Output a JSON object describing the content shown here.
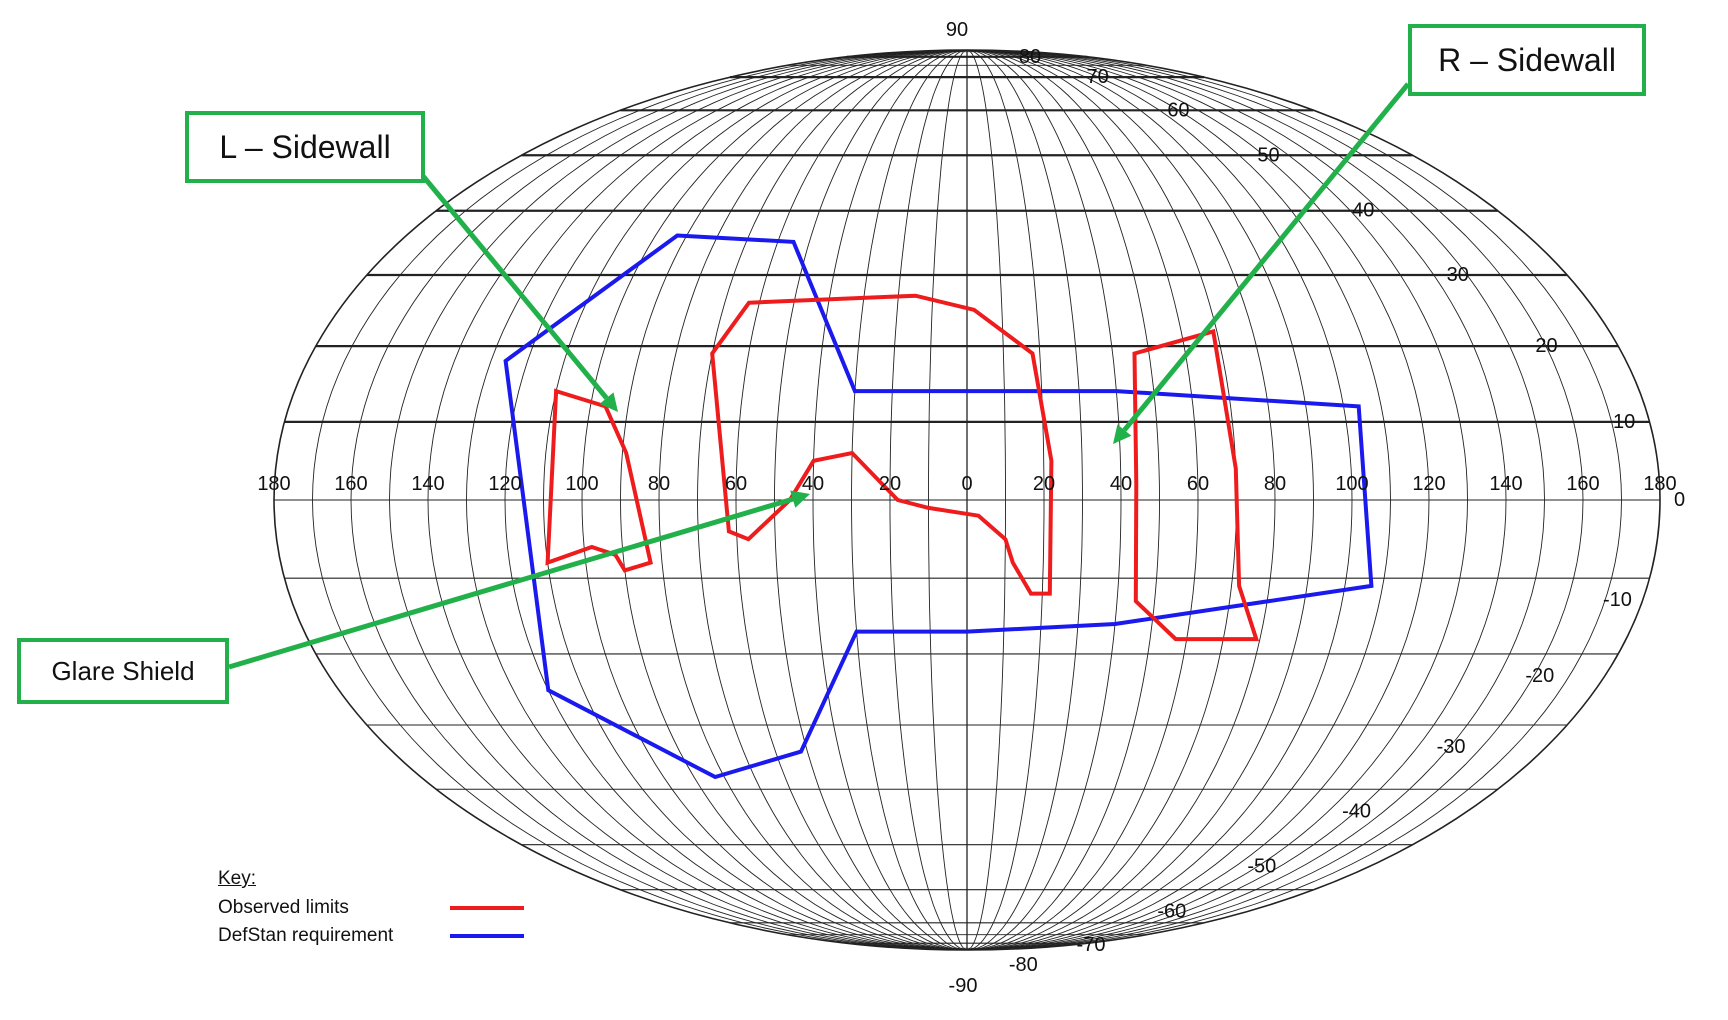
{
  "colors": {
    "observed": "#ee1c1c",
    "requirement": "#1a1aee",
    "callout": "#22b04b",
    "grid": "#222222"
  },
  "callouts": {
    "l_sidewall": "L – Sidewall",
    "r_sidewall": "R – Sidewall",
    "glare_shield": "Glare Shield"
  },
  "key": {
    "title": "Key:",
    "observed_label": "Observed limits",
    "requirement_label": "DefStan requirement"
  },
  "chart_data": {
    "type": "line",
    "projection": "equal-area ellipse (azimuth x elevation)",
    "x_tick_labels": [
      "180",
      "160",
      "140",
      "120",
      "100",
      "80",
      "60",
      "40",
      "20",
      "0",
      "20",
      "40",
      "60",
      "80",
      "100",
      "120",
      "140",
      "160",
      "180"
    ],
    "x_tick_values": [
      -180,
      -160,
      -140,
      -120,
      -100,
      -80,
      -60,
      -40,
      -20,
      0,
      20,
      40,
      60,
      80,
      100,
      120,
      140,
      160,
      180
    ],
    "y_tick_labels_top": [
      "90",
      "80",
      "70",
      "60",
      "50",
      "40",
      "30",
      "20",
      "10",
      "0"
    ],
    "y_tick_values_top": [
      90,
      80,
      70,
      60,
      50,
      40,
      30,
      20,
      10,
      0
    ],
    "y_tick_labels_bottom": [
      "-10",
      "-20",
      "-30",
      "-40",
      "-50",
      "-60",
      "-70",
      "-80",
      "-90"
    ],
    "y_tick_values_bottom": [
      -10,
      -20,
      -30,
      -40,
      -50,
      -60,
      -70,
      -80,
      -90
    ],
    "xlim": [
      -180,
      180
    ],
    "ylim": [
      -90,
      90
    ],
    "series": [
      {
        "name": "DefStan requirement",
        "color": "#1a1aee",
        "polygons": [
          [
            [
              -93,
              36
            ],
            [
              -55,
              35
            ],
            [
              -30,
              14
            ],
            [
              20,
              14
            ],
            [
              40,
              14
            ],
            [
              104,
              12
            ],
            [
              107,
              -11
            ],
            [
              40,
              -16
            ],
            [
              0,
              -17
            ],
            [
              -30,
              -17
            ],
            [
              -52,
              -34
            ],
            [
              -83,
              -38
            ],
            [
              -120,
              -25
            ],
            [
              -126,
              18
            ]
          ]
        ]
      },
      {
        "name": "Observed limits",
        "color": "#ee1c1c",
        "polygons": [
          [
            [
              -110,
              14
            ],
            [
              -96,
              12
            ],
            [
              -89,
              6
            ],
            [
              -83,
              -8
            ],
            [
              -90,
              -9
            ],
            [
              -92,
              -7
            ],
            [
              -98,
              -6
            ],
            [
              -110,
              -8
            ]
          ],
          [
            [
              -63,
              26
            ],
            [
              -15,
              27
            ],
            [
              2,
              25
            ],
            [
              18,
              19
            ],
            [
              22,
              5
            ],
            [
              22,
              -12
            ],
            [
              17,
              -12
            ],
            [
              12,
              -8
            ],
            [
              10,
              -5
            ],
            [
              3,
              -2
            ],
            [
              -10,
              -1
            ],
            [
              -18,
              0
            ],
            [
              -30,
              6
            ],
            [
              -40,
              5
            ],
            [
              -46,
              0
            ],
            [
              -57,
              -5
            ],
            [
              -62,
              -4
            ],
            [
              -70,
              19
            ]
          ],
          [
            [
              46,
              19
            ],
            [
              69,
              22
            ],
            [
              70,
              4
            ],
            [
              72,
              -11
            ],
            [
              79,
              -18
            ],
            [
              57,
              -18
            ],
            [
              45,
              -13
            ],
            [
              44,
              2
            ]
          ]
        ]
      }
    ]
  }
}
